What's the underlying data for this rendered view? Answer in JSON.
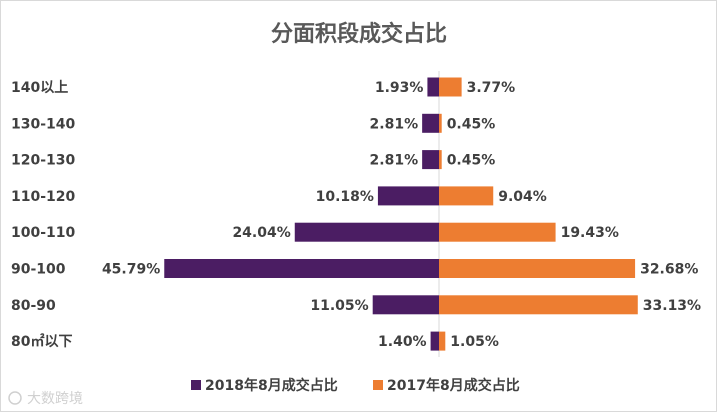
{
  "chart_data": {
    "type": "bar",
    "orientation": "horizontal-butterfly",
    "title": "分面积段成交占比",
    "categories": [
      "140以上",
      "130-140",
      "120-130",
      "110-120",
      "100-110",
      "90-100",
      "80-90",
      "80㎡以下"
    ],
    "series": [
      {
        "name": "2018年8月成交占比",
        "color": "#4b1d63",
        "side": "left",
        "values": [
          1.93,
          2.81,
          2.81,
          10.18,
          24.04,
          45.79,
          11.05,
          1.4
        ],
        "labels": [
          "1.93%",
          "2.81%",
          "2.81%",
          "10.18%",
          "24.04%",
          "45.79%",
          "11.05%",
          "1.40%"
        ]
      },
      {
        "name": "2017年8月成交占比",
        "color": "#ed7d31",
        "side": "right",
        "values": [
          3.77,
          0.45,
          0.45,
          9.04,
          19.43,
          32.68,
          33.13,
          1.05
        ],
        "labels": [
          "3.77%",
          "0.45%",
          "0.45%",
          "9.04%",
          "19.43%",
          "32.68%",
          "33.13%",
          "1.05%"
        ]
      }
    ],
    "xlim": [
      -50,
      50
    ],
    "legend_position": "bottom",
    "grid": false
  },
  "watermark": "大数跨境"
}
